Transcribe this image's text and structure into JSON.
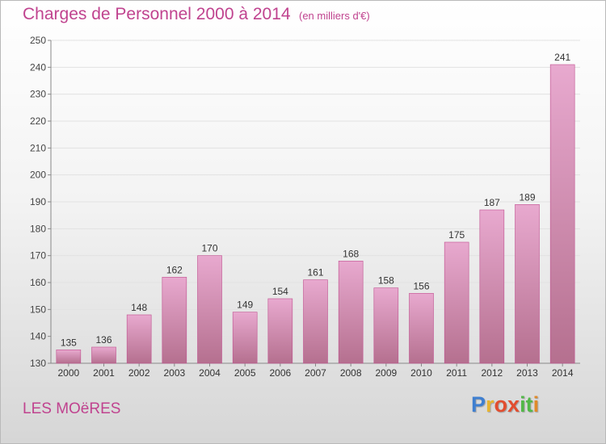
{
  "title": "Charges de Personnel 2000 à 2014",
  "subtitle": "(en milliers d'€)",
  "commune": "LES MOëRES",
  "logo": {
    "letters": [
      "P",
      "r",
      "o",
      "x",
      "i",
      "t",
      "i"
    ],
    "colors": [
      "#3f7fd0",
      "#e8b430",
      "#e24d2f",
      "#e24d2f",
      "#52b848",
      "#52b848",
      "#e08a2a"
    ]
  },
  "colors": {
    "accent": "#c0438f",
    "bar_top": "#e8a9cf",
    "bar_bottom": "#b5708f",
    "bar_edge": "#c0508f"
  },
  "chart_data": {
    "type": "bar",
    "categories": [
      "2000",
      "2001",
      "2002",
      "2003",
      "2004",
      "2005",
      "2006",
      "2007",
      "2008",
      "2009",
      "2010",
      "2011",
      "2012",
      "2013",
      "2014"
    ],
    "values": [
      135,
      136,
      148,
      162,
      170,
      149,
      154,
      161,
      168,
      158,
      156,
      175,
      187,
      189,
      241
    ],
    "title": "Charges de Personnel 2000 à 2014",
    "subtitle": "(en milliers d'€)",
    "xlabel": "",
    "ylabel": "",
    "ylim": [
      130,
      250
    ],
    "yticks": [
      130,
      140,
      150,
      160,
      170,
      180,
      190,
      200,
      210,
      220,
      230,
      240,
      250
    ],
    "grid": true,
    "data_labels": true
  }
}
